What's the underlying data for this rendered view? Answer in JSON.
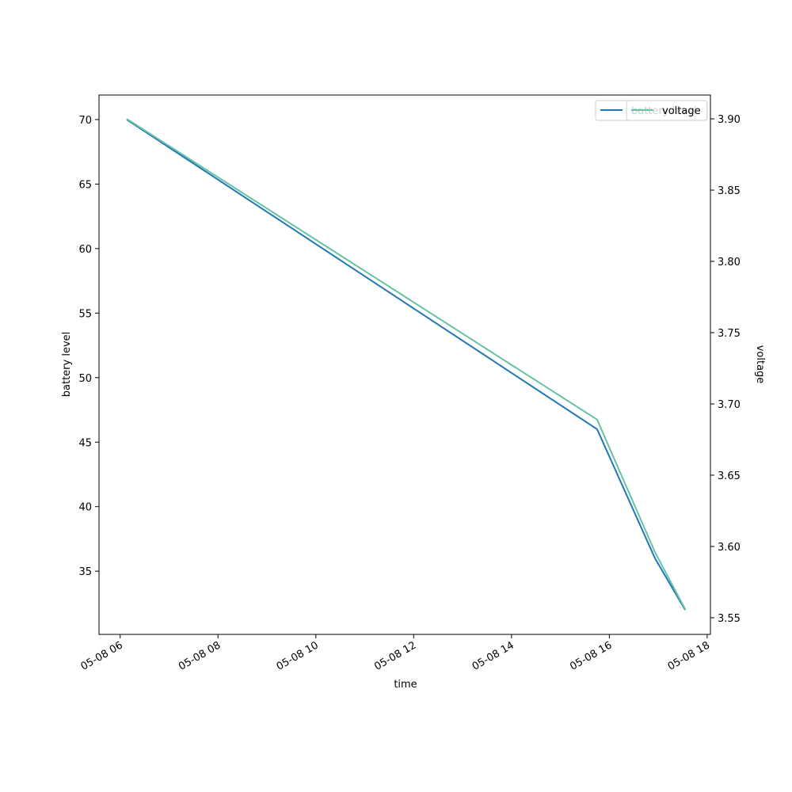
{
  "chart_data": {
    "type": "line",
    "xlabel": "time",
    "ylabel": "battery level",
    "y2label": "voltage",
    "x": [
      "05-08 06:08",
      "05-08 15:45",
      "05-08 16:56",
      "05-08 17:33"
    ],
    "series": [
      {
        "name": "battery level",
        "color": "#1f77b4",
        "values": [
          70,
          46,
          36,
          32
        ]
      },
      {
        "name": "voltage",
        "color": "#66c2a5",
        "axis": "y2",
        "values": [
          3.9,
          3.689,
          3.596,
          3.556
        ]
      }
    ],
    "xlim": [
      "05-08 05:34",
      "05-08 18:04"
    ],
    "xticks": [
      {
        "value": "05-08 06:00",
        "label": "05-08 06"
      },
      {
        "value": "05-08 08:00",
        "label": "05-08 08"
      },
      {
        "value": "05-08 10:00",
        "label": "05-08 10"
      },
      {
        "value": "05-08 12:00",
        "label": "05-08 12"
      },
      {
        "value": "05-08 14:00",
        "label": "05-08 14"
      },
      {
        "value": "05-08 16:00",
        "label": "05-08 16"
      },
      {
        "value": "05-08 18:00",
        "label": "05-08 18"
      }
    ],
    "ylim": [
      30.1,
      71.9
    ],
    "yticks": [
      35,
      40,
      45,
      50,
      55,
      60,
      65,
      70
    ],
    "y2lim": [
      3.5383,
      3.9167
    ],
    "y2ticks": [
      {
        "value": 3.55,
        "label": "3.55"
      },
      {
        "value": 3.6,
        "label": "3.60"
      },
      {
        "value": 3.65,
        "label": "3.65"
      },
      {
        "value": 3.7,
        "label": "3.70"
      },
      {
        "value": 3.75,
        "label": "3.75"
      },
      {
        "value": 3.8,
        "label": "3.80"
      },
      {
        "value": 3.85,
        "label": "3.85"
      },
      {
        "value": 3.9,
        "label": "3.90"
      }
    ],
    "legend": "upper right"
  }
}
